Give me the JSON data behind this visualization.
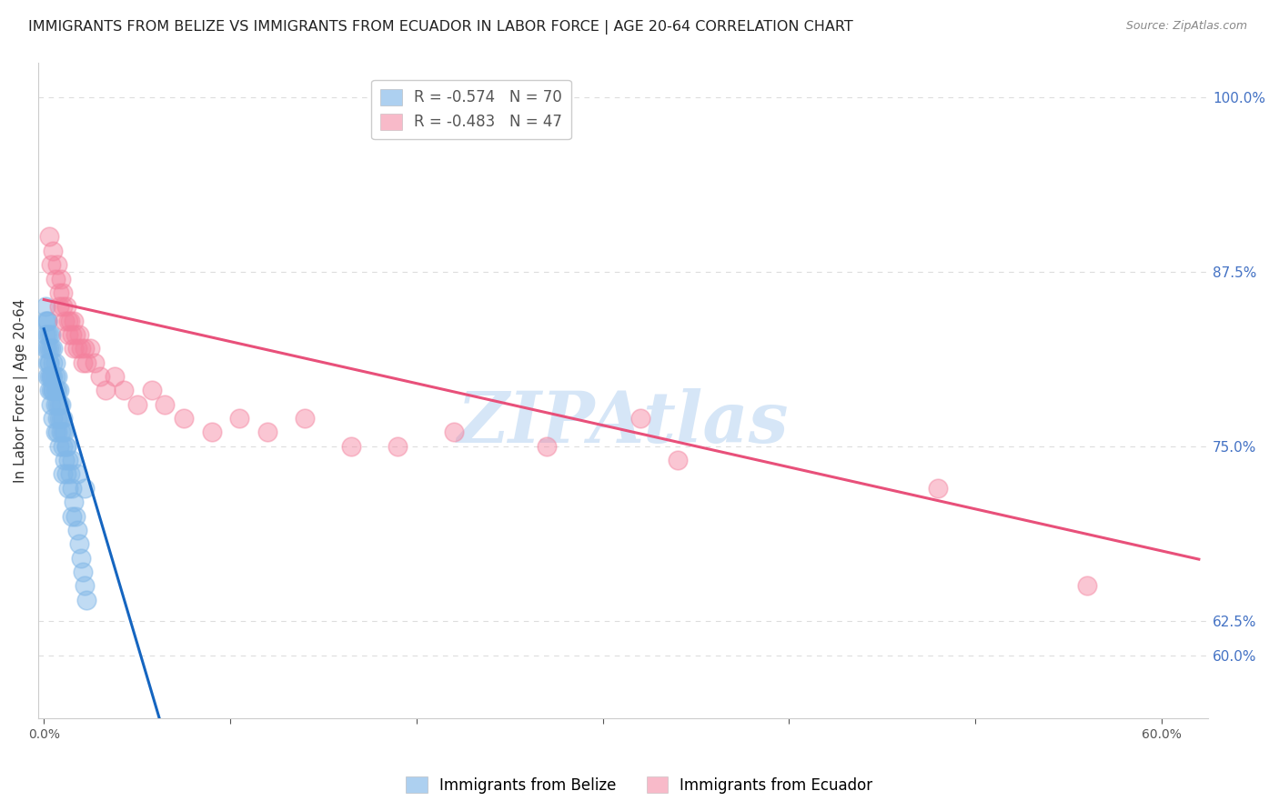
{
  "title": "IMMIGRANTS FROM BELIZE VS IMMIGRANTS FROM ECUADOR IN LABOR FORCE | AGE 20-64 CORRELATION CHART",
  "source": "Source: ZipAtlas.com",
  "ylabel": "In Labor Force | Age 20-64",
  "yright_ticks": [
    0.6,
    0.625,
    0.75,
    0.875,
    1.0
  ],
  "yright_labels": [
    "60.0%",
    "62.5%",
    "75.0%",
    "87.5%",
    "100.0%"
  ],
  "ylim": [
    0.555,
    1.025
  ],
  "xlim": [
    -0.003,
    0.625
  ],
  "belize_color": "#82b8e8",
  "ecuador_color": "#f4829e",
  "belize_line_color": "#1565c0",
  "ecuador_line_color": "#e8507a",
  "dash_color": "#bbbbbb",
  "belize_R": -0.574,
  "belize_N": 70,
  "ecuador_R": -0.483,
  "ecuador_N": 47,
  "watermark": "ZIPAtlas",
  "watermark_color": "#cce0f5",
  "background_color": "#ffffff",
  "grid_color": "#dddddd",
  "belize_x": [
    0.001,
    0.001,
    0.002,
    0.002,
    0.002,
    0.002,
    0.003,
    0.003,
    0.003,
    0.003,
    0.004,
    0.004,
    0.004,
    0.004,
    0.005,
    0.005,
    0.005,
    0.005,
    0.006,
    0.006,
    0.006,
    0.006,
    0.007,
    0.007,
    0.007,
    0.008,
    0.008,
    0.008,
    0.009,
    0.009,
    0.01,
    0.01,
    0.01,
    0.011,
    0.011,
    0.012,
    0.012,
    0.013,
    0.013,
    0.014,
    0.015,
    0.015,
    0.016,
    0.017,
    0.018,
    0.019,
    0.02,
    0.021,
    0.022,
    0.023,
    0.001,
    0.001,
    0.002,
    0.002,
    0.003,
    0.003,
    0.004,
    0.004,
    0.005,
    0.005,
    0.006,
    0.007,
    0.007,
    0.008,
    0.009,
    0.01,
    0.012,
    0.015,
    0.018,
    0.022
  ],
  "belize_y": [
    0.84,
    0.82,
    0.83,
    0.81,
    0.8,
    0.84,
    0.82,
    0.8,
    0.79,
    0.81,
    0.8,
    0.79,
    0.78,
    0.83,
    0.82,
    0.8,
    0.79,
    0.77,
    0.81,
    0.79,
    0.78,
    0.76,
    0.8,
    0.78,
    0.76,
    0.79,
    0.77,
    0.75,
    0.78,
    0.76,
    0.77,
    0.75,
    0.73,
    0.76,
    0.74,
    0.75,
    0.73,
    0.74,
    0.72,
    0.73,
    0.72,
    0.7,
    0.71,
    0.7,
    0.69,
    0.68,
    0.67,
    0.66,
    0.65,
    0.64,
    0.85,
    0.83,
    0.84,
    0.82,
    0.83,
    0.81,
    0.82,
    0.8,
    0.81,
    0.79,
    0.8,
    0.79,
    0.77,
    0.78,
    0.77,
    0.76,
    0.75,
    0.74,
    0.73,
    0.72
  ],
  "ecuador_x": [
    0.003,
    0.004,
    0.005,
    0.006,
    0.007,
    0.008,
    0.008,
    0.009,
    0.01,
    0.01,
    0.011,
    0.012,
    0.013,
    0.013,
    0.014,
    0.015,
    0.016,
    0.016,
    0.017,
    0.018,
    0.019,
    0.02,
    0.021,
    0.022,
    0.023,
    0.025,
    0.027,
    0.03,
    0.033,
    0.038,
    0.043,
    0.05,
    0.058,
    0.065,
    0.075,
    0.09,
    0.105,
    0.12,
    0.14,
    0.165,
    0.19,
    0.22,
    0.27,
    0.32,
    0.34,
    0.48,
    0.56
  ],
  "ecuador_y": [
    0.9,
    0.88,
    0.89,
    0.87,
    0.88,
    0.86,
    0.85,
    0.87,
    0.86,
    0.85,
    0.84,
    0.85,
    0.84,
    0.83,
    0.84,
    0.83,
    0.84,
    0.82,
    0.83,
    0.82,
    0.83,
    0.82,
    0.81,
    0.82,
    0.81,
    0.82,
    0.81,
    0.8,
    0.79,
    0.8,
    0.79,
    0.78,
    0.79,
    0.78,
    0.77,
    0.76,
    0.77,
    0.76,
    0.77,
    0.75,
    0.75,
    0.76,
    0.75,
    0.77,
    0.74,
    0.72,
    0.65
  ],
  "title_fontsize": 11.5,
  "source_fontsize": 9,
  "axis_label_fontsize": 11,
  "tick_fontsize": 10,
  "legend_fontsize": 12
}
